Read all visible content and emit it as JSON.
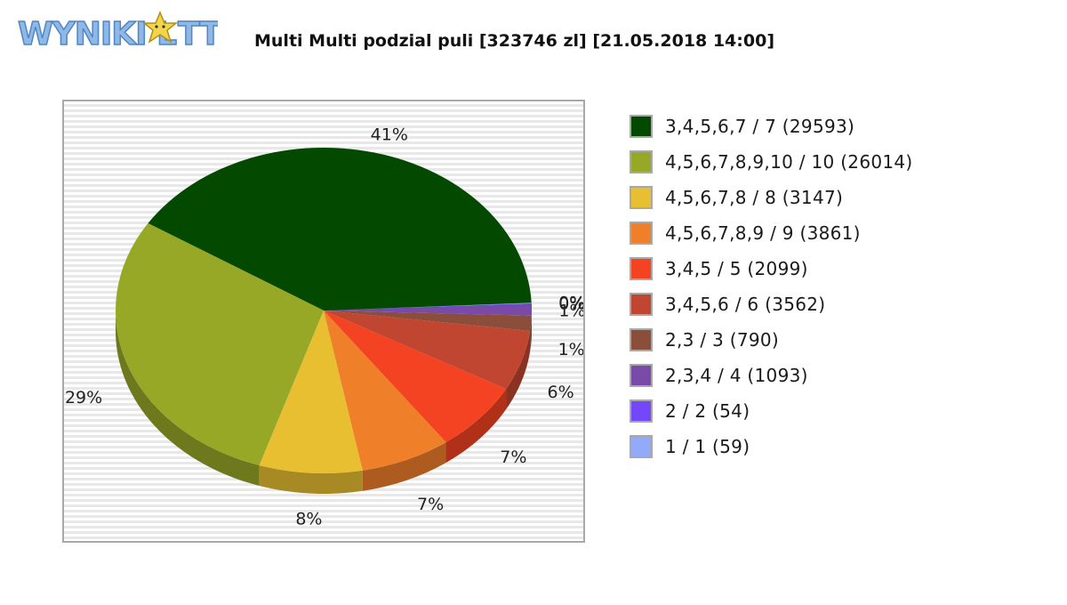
{
  "logo": {
    "text": "WYNIKI LOTTO"
  },
  "chart_data": {
    "type": "pie",
    "title": "Multi Multi podzial puli [323746 zl] [21.05.2018 14:00]",
    "legend_position": "right",
    "slices": [
      {
        "label": "3,4,5,6,7 / 7 (29593)",
        "value": 29593,
        "percent_label": "41%",
        "color": "#034a00"
      },
      {
        "label": "4,5,6,7,8,9,10 / 10 (26014)",
        "value": 26014,
        "percent_label": "29%",
        "color": "#97a827"
      },
      {
        "label": "4,5,6,7,8 / 8 (3147)",
        "value": 3147,
        "percent_label": "8%",
        "color": "#e9bf32"
      },
      {
        "label": "4,5,6,7,8,9 / 9 (3861)",
        "value": 3861,
        "percent_label": "7%",
        "color": "#f07f2a"
      },
      {
        "label": "3,4,5 / 5 (2099)",
        "value": 2099,
        "percent_label": "7%",
        "color": "#f44322"
      },
      {
        "label": "3,4,5,6 / 6 (3562)",
        "value": 3562,
        "percent_label": "6%",
        "color": "#c14631"
      },
      {
        "label": "2,3 / 3 (790)",
        "value": 790,
        "percent_label": "1%",
        "color": "#8a4e3a"
      },
      {
        "label": "2,3,4 / 4 (1093)",
        "value": 1093,
        "percent_label": "1%",
        "color": "#7a4aa8"
      },
      {
        "label": "2 / 2 (54)",
        "value": 54,
        "percent_label": "0%",
        "color": "#7348fb"
      },
      {
        "label": "1 / 1 (59)",
        "value": 59,
        "percent_label": "0%",
        "color": "#92aaf7"
      }
    ],
    "slice_fractions": [
      0.41,
      0.29,
      0.08,
      0.07,
      0.07,
      0.06,
      0.015,
      0.011,
      0.0008,
      0.0008
    ]
  }
}
